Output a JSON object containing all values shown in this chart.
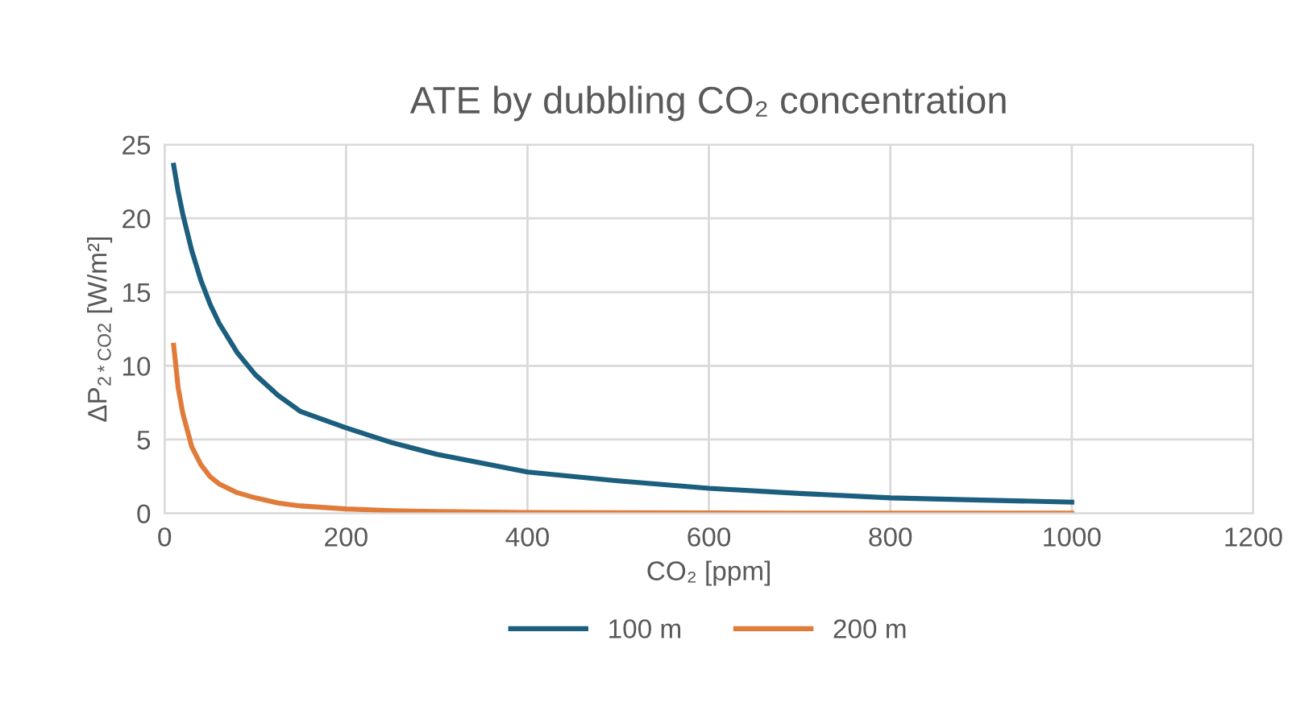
{
  "chart_data": {
    "type": "line",
    "title": "ATE by dubbling CO₂ concentration",
    "xlabel": "CO₂ [ppm]",
    "ylabel": "ΔP$_{2*CO2}$ [W/m²]",
    "x": [
      10,
      15,
      20,
      30,
      40,
      50,
      60,
      80,
      100,
      125,
      150,
      200,
      250,
      300,
      400,
      500,
      600,
      700,
      800,
      900,
      1000
    ],
    "series": [
      {
        "name": "100 m",
        "color": "#1b5e7e",
        "values": [
          23.6,
          21.8,
          20.3,
          17.8,
          15.8,
          14.2,
          12.9,
          10.9,
          9.4,
          8.0,
          6.9,
          5.8,
          4.8,
          4.0,
          2.8,
          2.2,
          1.7,
          1.35,
          1.05,
          0.9,
          0.76
        ]
      },
      {
        "name": "200 m",
        "color": "#e07b39",
        "values": [
          11.4,
          8.5,
          6.8,
          4.5,
          3.3,
          2.5,
          2.0,
          1.4,
          1.05,
          0.7,
          0.5,
          0.3,
          0.18,
          0.12,
          0.06,
          0.04,
          0.03,
          0.02,
          0.02,
          0.01,
          0.01
        ]
      }
    ],
    "xlim": [
      0,
      1200
    ],
    "xticks": [
      0,
      200,
      400,
      600,
      800,
      1000,
      1200
    ],
    "ylim": [
      0,
      25
    ],
    "yticks": [
      0,
      5,
      10,
      15,
      20,
      25
    ],
    "grid": true,
    "legend": "bottom",
    "marker": "none",
    "line_style": "solid"
  }
}
